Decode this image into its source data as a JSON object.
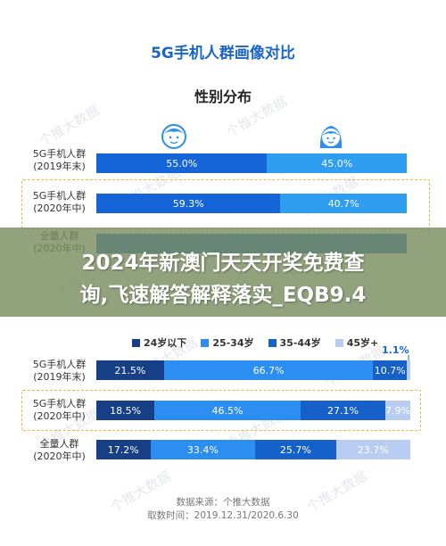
{
  "watermark": "个推大数据",
  "chart_data": [
    {
      "type": "bar",
      "title": "5G手机人群画像对比",
      "subtitle": "性别分布",
      "stacked": true,
      "orientation": "horizontal",
      "categories": [
        "5G手机人群\n(2019年末)",
        "5G手机人群\n(2020年中)",
        "全量人群\n(2020年中)"
      ],
      "series": [
        {
          "values": [
            55.0,
            59.3,
            null
          ],
          "color": "#1565d8"
        },
        {
          "values": [
            45.0,
            40.7,
            null
          ],
          "color": "#2f9df0"
        }
      ],
      "labels": [
        [
          "55.0%",
          "45.0%"
        ],
        [
          "59.3%",
          "40.7%"
        ],
        [
          "",
          ""
        ]
      ],
      "highlighted_category": 1,
      "icons": [
        "male-face-icon",
        "female-face-icon"
      ]
    },
    {
      "type": "bar",
      "stacked": true,
      "orientation": "horizontal",
      "categories": [
        "5G手机人群\n(2019年末)",
        "5G手机人群\n(2020年中)",
        "全量人群\n(2020年中)"
      ],
      "legend_position": "top",
      "series": [
        {
          "name": "24岁以下",
          "values": [
            21.5,
            18.5,
            17.2
          ],
          "color": "#173f86"
        },
        {
          "name": "25-34岁",
          "values": [
            66.7,
            46.5,
            33.4
          ],
          "color": "#2b8ef0"
        },
        {
          "name": "35-44岁",
          "values": [
            10.7,
            27.1,
            25.7
          ],
          "color": "#1560c9"
        },
        {
          "name": "45岁+",
          "values": [
            1.1,
            7.9,
            23.7
          ],
          "color": "#b9cdf3"
        }
      ],
      "labels": [
        [
          "21.5%",
          "66.7%",
          "10.7%",
          "1.1%"
        ],
        [
          "18.5%",
          "46.5%",
          "27.1%",
          "7.9%"
        ],
        [
          "17.2%",
          "33.4%",
          "25.7%",
          "23.7%"
        ]
      ],
      "highlighted_category": 1
    }
  ],
  "row_labels": [
    [
      "5G手机人群",
      "(2019年末)"
    ],
    [
      "5G手机人群",
      "(2020年中)"
    ],
    [
      "全量人群",
      "(2020年中)"
    ]
  ],
  "banner": {
    "line1": "2024年新澳门天天开奖免费查",
    "line2": "询,飞速解答解释落实_EQB9.4"
  },
  "source": {
    "line1": "数据来源：个推大数据",
    "line2": "取数时间：2019.12.31/2020.6.30"
  }
}
